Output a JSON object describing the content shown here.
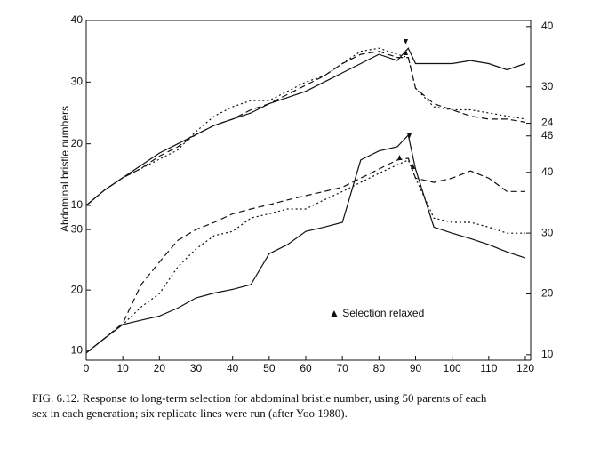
{
  "chart_data": [
    {
      "type": "line",
      "ylabel": "Abdominal bristle numbers",
      "x": [
        0,
        5,
        10,
        15,
        20,
        25,
        30,
        35,
        40,
        45,
        50,
        55,
        60,
        65,
        70,
        75,
        80,
        85,
        88,
        90,
        95,
        100,
        105,
        110,
        115,
        120
      ],
      "xlim": [
        0,
        120
      ],
      "ylim": [
        10,
        40
      ],
      "yticks": [
        10,
        20,
        30,
        40
      ],
      "y2lim": [
        10.4,
        41
      ],
      "y2ticks": [
        24,
        30,
        40
      ],
      "series": [
        {
          "color": "#111111",
          "style": "solid",
          "values": [
            10,
            12.5,
            14.5,
            16.5,
            18.5,
            20,
            21.5,
            23,
            24,
            25,
            26.5,
            27.5,
            28.5,
            30,
            31.5,
            33,
            34.5,
            33.5,
            35.5,
            33,
            33,
            33,
            33.5,
            33,
            32,
            33
          ]
        },
        {
          "color": "#111111",
          "style": "dashed",
          "values": [
            10,
            12.5,
            14.5,
            16,
            18,
            19.5,
            21.5,
            23,
            24,
            25.5,
            26.5,
            28,
            29.5,
            31,
            33,
            34.5,
            35,
            34,
            34,
            29,
            26.5,
            25.5,
            24.5,
            24,
            24,
            23.5
          ]
        },
        {
          "color": "#111111",
          "style": "dotted",
          "values": [
            10,
            12.5,
            14.5,
            16,
            17.5,
            19,
            22,
            24.5,
            26,
            27,
            27,
            28.5,
            30,
            31,
            33,
            35,
            35.5,
            34.5,
            34,
            29,
            26,
            25.5,
            25.5,
            25,
            24.5,
            24
          ]
        }
      ]
    },
    {
      "type": "line",
      "annotation": "▲ Selection relaxed",
      "x": [
        0,
        5,
        10,
        15,
        20,
        25,
        30,
        35,
        40,
        45,
        50,
        55,
        60,
        65,
        70,
        75,
        80,
        85,
        88,
        90,
        95,
        100,
        105,
        110,
        115,
        120
      ],
      "xlim": [
        0,
        120
      ],
      "xticks": [
        0,
        10,
        20,
        30,
        40,
        50,
        60,
        70,
        80,
        90,
        100,
        110,
        120
      ],
      "ylim": [
        8.4,
        45.9
      ],
      "yticks": [
        10,
        20,
        30
      ],
      "y2lim": [
        9.1,
        46.4
      ],
      "y2ticks": [
        10,
        20,
        30,
        40,
        46
      ],
      "series": [
        {
          "color": "#111111",
          "style": "solid",
          "values": [
            9.6,
            12,
            14.3,
            15,
            15.7,
            17,
            18.7,
            19.5,
            20.1,
            20.9,
            26,
            27.5,
            29.7,
            30.4,
            31.2,
            41.5,
            43,
            43.7,
            45.6,
            40,
            30.4,
            29.4,
            28.5,
            27.5,
            26.3,
            25.3
          ]
        },
        {
          "color": "#111111",
          "style": "dashed",
          "values": [
            9.6,
            12,
            14.5,
            20.9,
            24.6,
            28.2,
            30,
            31.2,
            32.6,
            33.4,
            34.1,
            34.9,
            35.6,
            36.3,
            37,
            38.5,
            40,
            41.5,
            41.8,
            38.5,
            37.8,
            38.5,
            39.7,
            38.5,
            36.3,
            36.3
          ]
        },
        {
          "color": "#111111",
          "style": "dotted",
          "values": [
            9.6,
            12,
            14.3,
            17.2,
            19.4,
            23.8,
            26.8,
            29,
            29.7,
            31.9,
            32.6,
            33.4,
            33.4,
            34.9,
            36.3,
            37.8,
            39.3,
            40.7,
            41.5,
            38.5,
            31.9,
            31.2,
            31.2,
            30.4,
            29.4,
            29.4
          ]
        }
      ]
    }
  ],
  "caption": [
    "FIG. 6.12. Response to long-term selection for abdominal bristle number, using 50 parents of each",
    "sex in each generation; six replicate lines were run (after Yoo 1980)."
  ]
}
